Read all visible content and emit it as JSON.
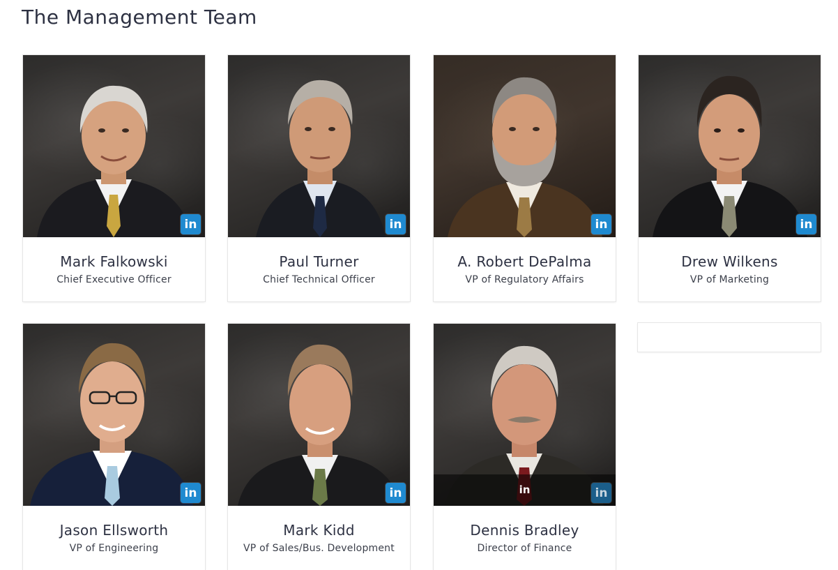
{
  "page": {
    "title": "The Management Team"
  },
  "linkedin_label": "in",
  "colors": {
    "linkedin": "#1f8ad0",
    "heading": "#2d3142",
    "skin": "#d6a27f",
    "suit": "#1d1d22"
  },
  "team": [
    {
      "name": "Mark Falkowski",
      "role": "Chief Executive Officer",
      "hair": "#d9d6d1",
      "tie": "#c9a640",
      "suit": "#1b1b1f"
    },
    {
      "name": "Paul Turner",
      "role": "Chief Technical Officer",
      "hair": "#b6afa6",
      "tie": "#1e2a44",
      "suit": "#1a1c22"
    },
    {
      "name": "A. Robert DePalma",
      "role": "VP of Regulatory Affairs",
      "hair": "#8d8883",
      "tie": "#9c7b45",
      "suit": "#4a3420"
    },
    {
      "name": "Drew Wilkens",
      "role": "VP of Marketing",
      "hair": "#2b2420",
      "tie": "#8b8a74",
      "suit": "#141416"
    },
    {
      "name": "Jason Ellsworth",
      "role": "VP of Engineering",
      "hair": "#8a6a45",
      "tie": "#a9cbe0",
      "suit": "#16203a"
    },
    {
      "name": "Mark Kidd",
      "role": "VP of Sales/Bus. Development",
      "hair": "#9a7a5c",
      "tie": "#6b7a48",
      "suit": "#1a1a1c"
    },
    {
      "name": "Dennis Bradley",
      "role": "Director of Finance",
      "hair": "#cfcac3",
      "tie": "#7a1a1e",
      "suit": "#2c2a26"
    }
  ]
}
